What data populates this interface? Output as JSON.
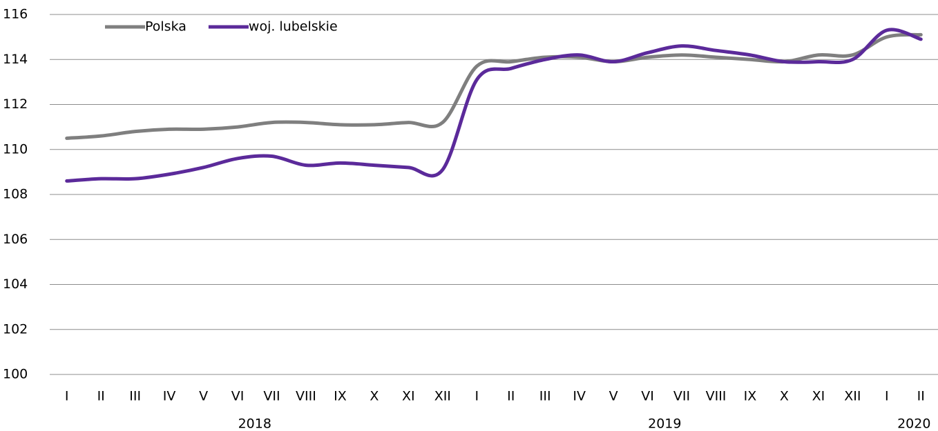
{
  "chart_data": {
    "type": "line",
    "categories": [
      "I",
      "II",
      "III",
      "IV",
      "V",
      "VI",
      "VII",
      "VIII",
      "IX",
      "X",
      "XI",
      "XII",
      "I",
      "II",
      "III",
      "IV",
      "V",
      "VI",
      "VII",
      "VIII",
      "IX",
      "X",
      "XI",
      "XII",
      "I",
      "II"
    ],
    "x_groups": [
      {
        "label": "2018",
        "count": 12
      },
      {
        "label": "2019",
        "count": 12
      },
      {
        "label": "2020",
        "count": 2
      }
    ],
    "series": [
      {
        "name": "Polska",
        "color": "#7f7f7f",
        "values": [
          110.5,
          110.6,
          110.8,
          110.9,
          110.9,
          111.0,
          111.2,
          111.2,
          111.1,
          111.1,
          111.2,
          111.2,
          113.7,
          113.9,
          114.1,
          114.1,
          113.9,
          114.1,
          114.2,
          114.1,
          114.0,
          113.9,
          114.2,
          114.2,
          115.0,
          115.1
        ]
      },
      {
        "name": "woj. lubelskie",
        "color": "#5b2a9a",
        "values": [
          108.6,
          108.7,
          108.7,
          108.9,
          109.2,
          109.6,
          109.7,
          109.3,
          109.4,
          109.3,
          109.2,
          109.1,
          113.1,
          113.6,
          114.0,
          114.2,
          113.9,
          114.3,
          114.6,
          114.4,
          114.2,
          113.9,
          113.9,
          114.0,
          115.3,
          114.9
        ]
      }
    ],
    "ylim": [
      100,
      116
    ],
    "yticks": [
      100,
      102,
      104,
      106,
      108,
      110,
      112,
      114,
      116
    ],
    "grid": true,
    "legend": "top-left"
  }
}
